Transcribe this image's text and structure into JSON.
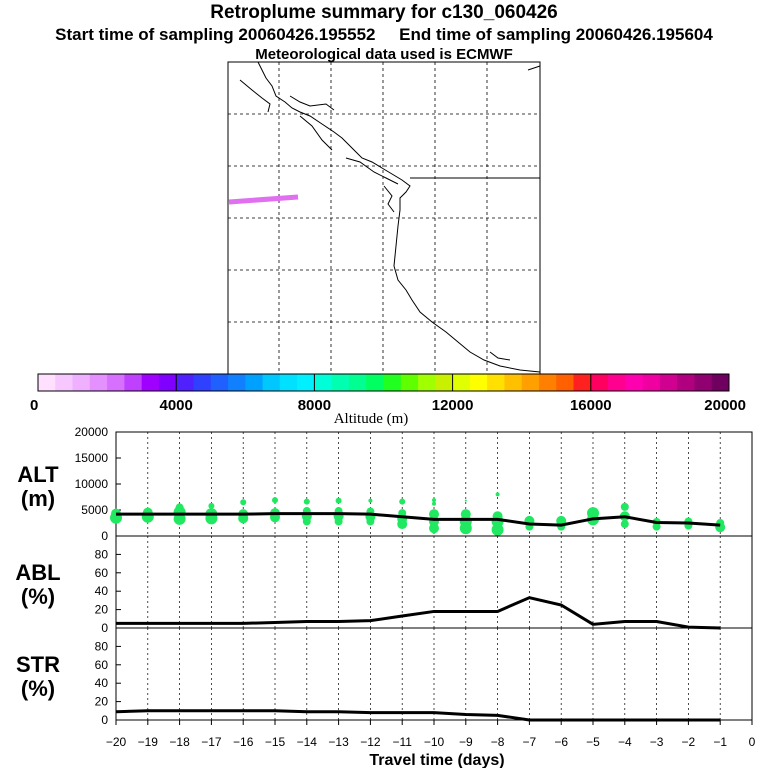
{
  "title": "Retroplume summary for c130_060426",
  "sampling_line": "Start time of sampling 20060426.195552     End time of sampling 20060426.195604",
  "met_line": "Meteorological data used is ECMWF",
  "colorbar": {
    "label": "Altitude (m)",
    "tick_labels": [
      "0",
      "4000",
      "8000",
      "12000",
      "16000",
      "20000"
    ],
    "colors": [
      "#ffe0ff",
      "#f6c8ff",
      "#eeb0ff",
      "#e490ff",
      "#d870ff",
      "#c040ff",
      "#a000ff",
      "#8000ff",
      "#5020ff",
      "#3040ff",
      "#2060ff",
      "#1080ff",
      "#00a0ff",
      "#00c8ff",
      "#00e0ff",
      "#00f0ff",
      "#00ffd8",
      "#00ffb0",
      "#00ff90",
      "#00ff60",
      "#20ff20",
      "#60ff00",
      "#a0ff00",
      "#c8f000",
      "#e0ff00",
      "#ffff00",
      "#ffe000",
      "#ffc000",
      "#ffa000",
      "#ff8000",
      "#ff6000",
      "#ff2020",
      "#ff0060",
      "#ff0090",
      "#ff00b0",
      "#f000a0",
      "#d00090",
      "#b00080",
      "#900070",
      "#700060"
    ]
  },
  "map": {
    "plume_color": "#e070f0"
  },
  "chart_data": [
    {
      "type": "line",
      "panel": "ALT",
      "ylabel": "ALT\n(m)",
      "ylabel_lines": [
        "ALT",
        "(m)"
      ],
      "ylim": [
        0,
        20000
      ],
      "yticks": [
        0,
        5000,
        10000,
        15000,
        20000
      ],
      "ytick_labels": [
        "0",
        "5000",
        "10000",
        "15000",
        "20000"
      ],
      "x": [
        -20,
        -19,
        -18,
        -17,
        -16,
        -15,
        -14,
        -13,
        -12,
        -11,
        -10,
        -9,
        -8,
        -7,
        -6,
        -5,
        -4,
        -3,
        -2,
        -1
      ],
      "values": [
        4200,
        4200,
        4200,
        4200,
        4200,
        4300,
        4300,
        4300,
        4200,
        3700,
        3200,
        3200,
        3200,
        2300,
        2100,
        3300,
        3700,
        2600,
        2500,
        2100
      ],
      "scatter_color": "#20e860",
      "scatter": [
        [
          -20,
          3500,
          6
        ],
        [
          -20,
          4300,
          5
        ],
        [
          -19,
          3700,
          6
        ],
        [
          -19,
          4500,
          5
        ],
        [
          -18,
          3300,
          6
        ],
        [
          -18,
          4600,
          6
        ],
        [
          -18,
          5500,
          4
        ],
        [
          -17,
          3400,
          6
        ],
        [
          -17,
          4200,
          6
        ],
        [
          -17,
          5800,
          3
        ],
        [
          -16,
          3400,
          5
        ],
        [
          -16,
          4200,
          5
        ],
        [
          -16,
          6500,
          3
        ],
        [
          -15,
          3600,
          5
        ],
        [
          -15,
          4400,
          5
        ],
        [
          -15,
          6900,
          3
        ],
        [
          -14,
          2800,
          4
        ],
        [
          -14,
          3800,
          5
        ],
        [
          -14,
          4800,
          4
        ],
        [
          -14,
          6600,
          3
        ],
        [
          -13,
          2800,
          4
        ],
        [
          -13,
          3800,
          5
        ],
        [
          -13,
          4800,
          4
        ],
        [
          -13,
          6800,
          3
        ],
        [
          -12,
          2800,
          4
        ],
        [
          -12,
          3700,
          5
        ],
        [
          -12,
          4700,
          4
        ],
        [
          -12,
          6800,
          2
        ],
        [
          -11,
          2300,
          5
        ],
        [
          -11,
          3300,
          5
        ],
        [
          -11,
          4400,
          4
        ],
        [
          -11,
          6600,
          3
        ],
        [
          -10,
          1500,
          5
        ],
        [
          -10,
          2800,
          5
        ],
        [
          -10,
          4200,
          5
        ],
        [
          -10,
          6200,
          2
        ],
        [
          -10,
          6900,
          2
        ],
        [
          -9,
          1500,
          6
        ],
        [
          -9,
          2800,
          6
        ],
        [
          -9,
          4200,
          5
        ],
        [
          -9,
          6800,
          1
        ],
        [
          -8,
          1200,
          6
        ],
        [
          -8,
          2800,
          6
        ],
        [
          -8,
          3800,
          5
        ],
        [
          -8,
          8000,
          2
        ],
        [
          -7,
          1800,
          4
        ],
        [
          -7,
          2900,
          5
        ],
        [
          -6,
          1800,
          4
        ],
        [
          -6,
          2900,
          5
        ],
        [
          -5,
          3200,
          6
        ],
        [
          -5,
          4400,
          6
        ],
        [
          -4,
          2300,
          4
        ],
        [
          -4,
          3800,
          5
        ],
        [
          -4,
          5600,
          4
        ],
        [
          -3,
          1800,
          4
        ],
        [
          -3,
          2700,
          4
        ],
        [
          -2,
          2000,
          4
        ],
        [
          -2,
          2800,
          4
        ],
        [
          -1,
          1700,
          5
        ],
        [
          -1,
          2500,
          4
        ]
      ]
    },
    {
      "type": "line",
      "panel": "ABL",
      "ylabel": "ABL\n(%)",
      "ylabel_lines": [
        "ABL",
        "(%)"
      ],
      "ylim": [
        0,
        100
      ],
      "yticks": [
        0,
        20,
        40,
        60,
        80
      ],
      "ytick_labels": [
        "0",
        "20",
        "40",
        "60",
        "80"
      ],
      "x": [
        -20,
        -19,
        -18,
        -17,
        -16,
        -15,
        -14,
        -13,
        -12,
        -11,
        -10,
        -9,
        -8,
        -7,
        -6,
        -5,
        -4,
        -3,
        -2,
        -1
      ],
      "values": [
        5,
        5,
        5,
        5,
        5,
        6,
        7,
        7,
        8,
        13,
        18,
        18,
        18,
        33,
        25,
        4,
        7,
        7,
        1,
        0
      ]
    },
    {
      "type": "line",
      "panel": "STR",
      "ylabel": "STR\n(%)",
      "ylabel_lines": [
        "STR",
        "(%)"
      ],
      "ylim": [
        0,
        100
      ],
      "yticks": [
        0,
        20,
        40,
        60,
        80
      ],
      "ytick_labels": [
        "0",
        "20",
        "40",
        "60",
        "80"
      ],
      "x": [
        -20,
        -19,
        -18,
        -17,
        -16,
        -15,
        -14,
        -13,
        -12,
        -11,
        -10,
        -9,
        -8,
        -7,
        -6,
        -5,
        -4,
        -3,
        -2,
        -1
      ],
      "values": [
        9,
        10,
        10,
        10,
        10,
        10,
        9,
        9,
        8,
        8,
        8,
        6,
        5,
        0,
        0,
        0,
        0,
        0,
        0,
        0
      ],
      "xlabel": "Travel time (days)",
      "xlim": [
        -20,
        0
      ],
      "xticks": [
        -20,
        -19,
        -18,
        -17,
        -16,
        -15,
        -14,
        -13,
        -12,
        -11,
        -10,
        -9,
        -8,
        -7,
        -6,
        -5,
        -4,
        -3,
        -2,
        -1,
        0
      ],
      "xtick_labels": [
        "−20",
        "−19",
        "−18",
        "−17",
        "−16",
        "−15",
        "−14",
        "−13",
        "−12",
        "−11",
        "−10",
        "−9",
        "−8",
        "−7",
        "−6",
        "−5",
        "−4",
        "−3",
        "−2",
        "−1",
        "0"
      ]
    }
  ]
}
